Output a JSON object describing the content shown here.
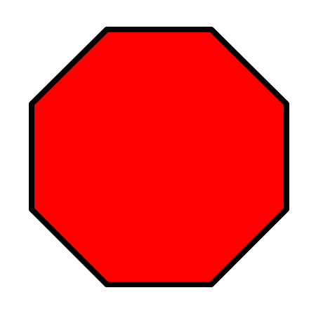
{
  "shape": {
    "kind": "octagon",
    "icon": "octagon-icon",
    "fill_color": "#ff0000",
    "stroke_color": "#000000"
  }
}
